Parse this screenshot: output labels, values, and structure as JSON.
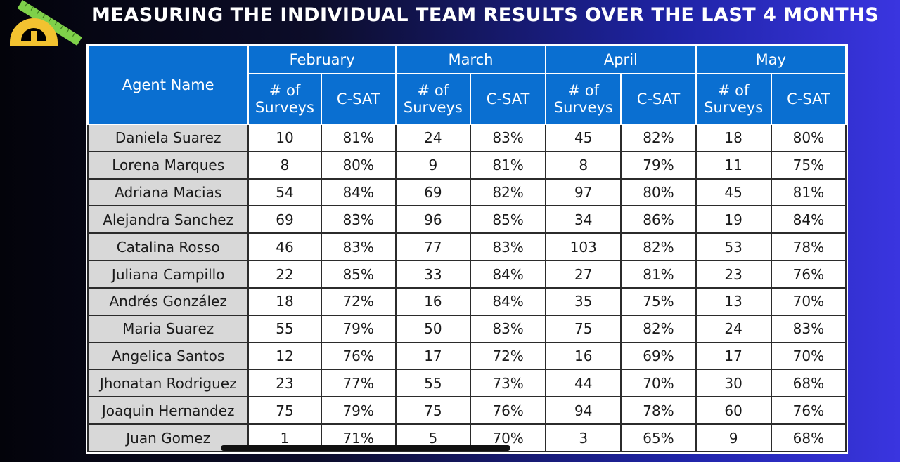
{
  "title": "MEASURING THE INDIVIDUAL TEAM RESULTS OVER THE LAST 4 MONTHS",
  "colors": {
    "header_blue": "#0a6fd1",
    "name_gray": "#d8d8d8",
    "logo_yellow": "#f2c230",
    "logo_green": "#7fd14a"
  },
  "table": {
    "agent_header": "Agent Name",
    "months": [
      "February",
      "March",
      "April",
      "May"
    ],
    "subheaders": {
      "surveys": "# of Surveys",
      "csat": "C-SAT"
    },
    "rows": [
      {
        "name": "Daniela Suarez",
        "values": [
          "10",
          "81%",
          "24",
          "83%",
          "45",
          "82%",
          "18",
          "80%"
        ]
      },
      {
        "name": "Lorena Marques",
        "values": [
          "8",
          "80%",
          "9",
          "81%",
          "8",
          "79%",
          "11",
          "75%"
        ]
      },
      {
        "name": "Adriana Macias",
        "values": [
          "54",
          "84%",
          "69",
          "82%",
          "97",
          "80%",
          "45",
          "81%"
        ]
      },
      {
        "name": "Alejandra Sanchez",
        "values": [
          "69",
          "83%",
          "96",
          "85%",
          "34",
          "86%",
          "19",
          "84%"
        ]
      },
      {
        "name": "Catalina Rosso",
        "values": [
          "46",
          "83%",
          "77",
          "83%",
          "103",
          "82%",
          "53",
          "78%"
        ]
      },
      {
        "name": "Juliana Campillo",
        "values": [
          "22",
          "85%",
          "33",
          "84%",
          "27",
          "81%",
          "23",
          "76%"
        ]
      },
      {
        "name": "Andrés González",
        "values": [
          "18",
          "72%",
          "16",
          "84%",
          "35",
          "75%",
          "13",
          "70%"
        ]
      },
      {
        "name": "Maria Suarez",
        "values": [
          "55",
          "79%",
          "50",
          "83%",
          "75",
          "82%",
          "24",
          "83%"
        ]
      },
      {
        "name": "Angelica Santos",
        "values": [
          "12",
          "76%",
          "17",
          "72%",
          "16",
          "69%",
          "17",
          "70%"
        ]
      },
      {
        "name": "Jhonatan Rodriguez",
        "values": [
          "23",
          "77%",
          "55",
          "73%",
          "44",
          "70%",
          "30",
          "68%"
        ]
      },
      {
        "name": "Joaquin Hernandez",
        "values": [
          "75",
          "79%",
          "75",
          "76%",
          "94",
          "78%",
          "60",
          "76%"
        ]
      },
      {
        "name": "Juan Gomez",
        "values": [
          "1",
          "71%",
          "5",
          "70%",
          "3",
          "65%",
          "9",
          "68%"
        ]
      }
    ]
  }
}
